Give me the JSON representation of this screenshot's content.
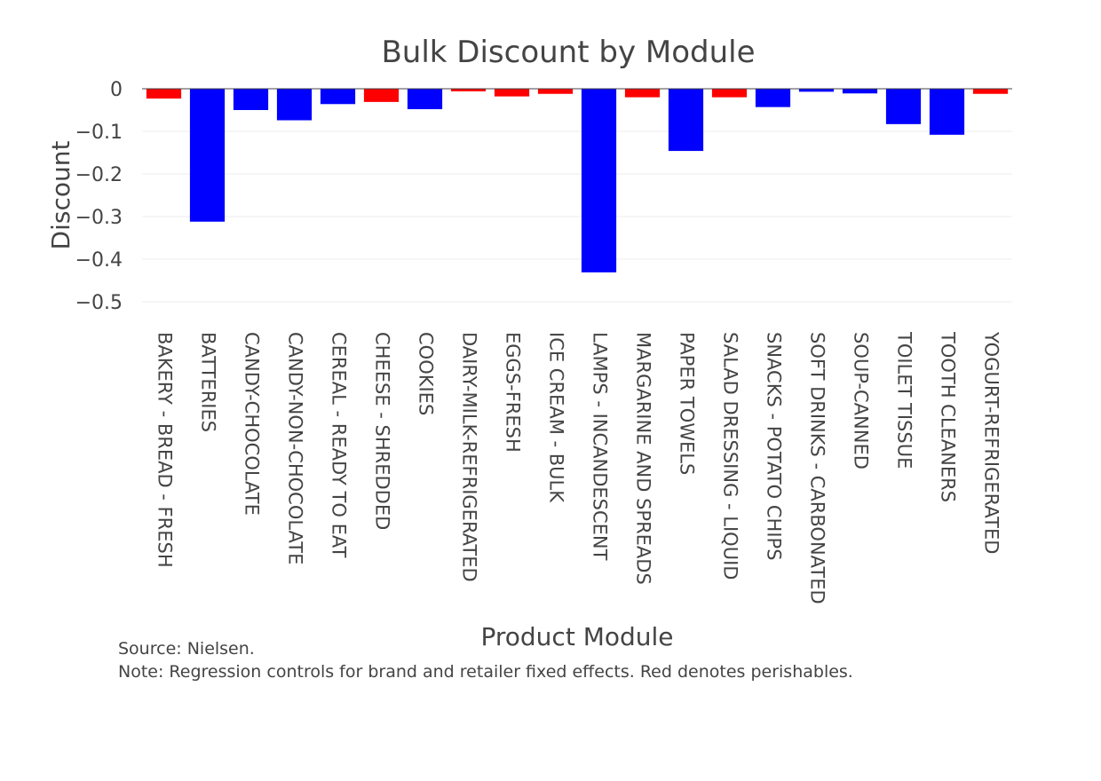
{
  "chart_data": {
    "type": "bar",
    "title": "Bulk Discount by Module",
    "xlabel": "Product Module",
    "ylabel": "Discount",
    "ylim": [
      -0.5,
      0
    ],
    "yticks": [
      0,
      -0.1,
      -0.2,
      -0.3,
      -0.4,
      -0.5
    ],
    "ytick_labels": [
      "0",
      "−0.1",
      "−0.2",
      "−0.3",
      "−0.4",
      "−0.5"
    ],
    "grid": true,
    "categories": [
      "BAKERY - BREAD - FRESH",
      "BATTERIES",
      "CANDY-CHOCOLATE",
      "CANDY-NON-CHOCOLATE",
      "CEREAL - READY TO EAT",
      "CHEESE - SHREDDED",
      "COOKIES",
      "DAIRY-MILK-REFRIGERATED",
      "EGGS-FRESH",
      "ICE CREAM - BULK",
      "LAMPS - INCANDESCENT",
      "MARGARINE AND SPREADS",
      "PAPER TOWELS",
      "SALAD DRESSING - LIQUID",
      "SNACKS - POTATO CHIPS",
      "SOFT DRINKS - CARBONATED",
      "SOUP-CANNED",
      "TOILET TISSUE",
      "TOOTH CLEANERS",
      "YOGURT-REFRIGERATED"
    ],
    "values": [
      -0.023,
      -0.312,
      -0.05,
      -0.074,
      -0.036,
      -0.031,
      -0.048,
      -0.006,
      -0.018,
      -0.012,
      -0.431,
      -0.02,
      -0.146,
      -0.02,
      -0.043,
      -0.007,
      -0.011,
      -0.083,
      -0.108,
      -0.012
    ],
    "perishable": [
      true,
      false,
      false,
      false,
      false,
      true,
      false,
      true,
      true,
      true,
      false,
      true,
      false,
      true,
      false,
      false,
      false,
      false,
      false,
      true
    ],
    "colors": {
      "perishable": "#ff0000",
      "non_perishable": "#0000ff",
      "grid": "#eeeeee",
      "zeroline": "#444444",
      "text": "#444444"
    }
  },
  "notes": {
    "source": "Source: Nielsen.",
    "note": "Note: Regression controls for brand and retailer fixed effects. Red denotes perishables."
  }
}
